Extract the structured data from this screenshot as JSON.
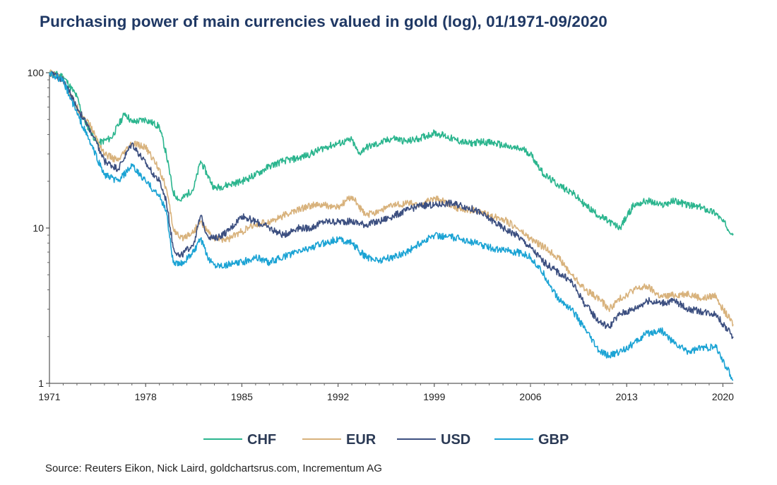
{
  "chart_data": {
    "type": "line",
    "title": "Purchasing power of main currencies valued in gold (log), 01/1971-09/2020",
    "yscale": "log",
    "ylim": [
      1,
      100
    ],
    "xlim": [
      1971.0,
      2020.75
    ],
    "x_ticks": [
      "1971",
      "1978",
      "1985",
      "1992",
      "1999",
      "2006",
      "2013",
      "2020"
    ],
    "y_ticks": [
      "1",
      "10",
      "100"
    ],
    "grid": false,
    "legend_position": "bottom",
    "series": [
      {
        "name": "CHF",
        "color": "#2bb58e",
        "x": [
          1971.0,
          1972.0,
          1973.0,
          1973.5,
          1974.5,
          1975.5,
          1976.5,
          1977.0,
          1978.0,
          1979.0,
          1979.5,
          1980.0,
          1980.5,
          1981.5,
          1982.0,
          1982.5,
          1983.0,
          1984.0,
          1985.0,
          1986.0,
          1987.0,
          1988.0,
          1989.0,
          1990.0,
          1991.0,
          1992.0,
          1993.0,
          1993.5,
          1994.0,
          1995.0,
          1996.0,
          1997.0,
          1998.0,
          1999.0,
          1999.5,
          2000.5,
          2001.5,
          2002.5,
          2003.5,
          2004.5,
          2005.5,
          2006.0,
          2007.0,
          2008.0,
          2009.0,
          2010.0,
          2011.0,
          2011.7,
          2012.5,
          2013.5,
          2014.5,
          2015.5,
          2016.5,
          2017.5,
          2018.5,
          2019.5,
          2020.0,
          2020.75
        ],
        "values": [
          100,
          95,
          70,
          50,
          35,
          38,
          55,
          48,
          50,
          45,
          30,
          17,
          15,
          18,
          27,
          22,
          18,
          19,
          20,
          22,
          25,
          27,
          28,
          30,
          33,
          35,
          37,
          30,
          33,
          35,
          38,
          36,
          38,
          41,
          40,
          37,
          35,
          36,
          35,
          33,
          32,
          30,
          22,
          19,
          17,
          14,
          12,
          11,
          10,
          14,
          15,
          14,
          15,
          14,
          13.5,
          12.5,
          11,
          9.2
        ]
      },
      {
        "name": "EUR",
        "color": "#d8b27c",
        "x": [
          1971.0,
          1972.0,
          1973.0,
          1974.0,
          1975.0,
          1976.0,
          1977.0,
          1978.0,
          1979.0,
          1979.5,
          1980.0,
          1980.5,
          1981.5,
          1982.0,
          1982.5,
          1983.0,
          1984.0,
          1985.0,
          1986.0,
          1987.0,
          1988.0,
          1989.0,
          1990.0,
          1991.0,
          1992.0,
          1993.0,
          1994.0,
          1995.0,
          1996.0,
          1997.0,
          1998.0,
          1999.0,
          2000.0,
          2001.0,
          2002.0,
          2003.0,
          2004.0,
          2005.0,
          2006.0,
          2007.0,
          2008.0,
          2009.0,
          2010.0,
          2011.0,
          2011.7,
          2012.5,
          2013.5,
          2014.5,
          2015.5,
          2016.5,
          2017.5,
          2018.5,
          2019.5,
          2020.0,
          2020.75
        ],
        "values": [
          100,
          90,
          60,
          45,
          30,
          27,
          35,
          33,
          24,
          18,
          10,
          8.5,
          9.5,
          11,
          9.5,
          8.5,
          8.5,
          9.5,
          10.5,
          11,
          12,
          13,
          14,
          14,
          13.5,
          16,
          12,
          13,
          14,
          14.5,
          14,
          15.5,
          14.5,
          13,
          13,
          12,
          11.5,
          10,
          8.5,
          7.5,
          6.5,
          5,
          4,
          3.5,
          3,
          3.5,
          4,
          4.2,
          3.6,
          3.7,
          3.8,
          3.5,
          3.7,
          3.0,
          2.4
        ]
      },
      {
        "name": "USD",
        "color": "#3c4f80",
        "x": [
          1971.0,
          1972.0,
          1973.0,
          1974.0,
          1975.0,
          1976.0,
          1977.0,
          1978.0,
          1979.0,
          1979.5,
          1980.0,
          1980.5,
          1981.5,
          1982.0,
          1982.5,
          1983.0,
          1984.0,
          1985.0,
          1986.0,
          1987.0,
          1988.0,
          1989.0,
          1990.0,
          1991.0,
          1992.0,
          1993.0,
          1994.0,
          1995.0,
          1996.0,
          1997.0,
          1998.0,
          1999.0,
          2000.0,
          2001.0,
          2002.0,
          2003.0,
          2004.0,
          2005.0,
          2006.0,
          2007.0,
          2008.0,
          2009.0,
          2010.0,
          2011.0,
          2011.7,
          2012.5,
          2013.5,
          2014.5,
          2015.5,
          2016.5,
          2017.5,
          2018.5,
          2019.5,
          2020.0,
          2020.75
        ],
        "values": [
          100,
          90,
          60,
          42,
          27,
          24,
          35,
          26,
          20,
          15,
          7.5,
          6.5,
          8,
          12,
          9,
          8.5,
          9.5,
          12,
          11,
          10,
          9,
          10,
          10,
          11,
          11,
          11,
          10.5,
          11,
          12,
          13,
          14,
          14,
          14.5,
          14,
          13,
          11.5,
          10,
          9,
          7.5,
          6,
          5.2,
          4.5,
          3.2,
          2.5,
          2.3,
          2.8,
          3.0,
          3.4,
          3.3,
          3.4,
          3.0,
          2.9,
          2.8,
          2.4,
          2.0
        ]
      },
      {
        "name": "GBP",
        "color": "#1ba3d4",
        "x": [
          1971.0,
          1972.0,
          1973.0,
          1974.0,
          1975.0,
          1976.0,
          1977.0,
          1978.0,
          1979.0,
          1979.5,
          1980.0,
          1980.5,
          1981.5,
          1982.0,
          1982.5,
          1983.0,
          1984.0,
          1985.0,
          1986.0,
          1987.0,
          1988.0,
          1989.0,
          1990.0,
          1991.0,
          1992.0,
          1993.0,
          1994.0,
          1995.0,
          1996.0,
          1997.0,
          1998.0,
          1999.0,
          2000.0,
          2001.0,
          2002.0,
          2003.0,
          2004.0,
          2005.0,
          2006.0,
          2007.0,
          2008.0,
          2009.0,
          2010.0,
          2011.0,
          2011.7,
          2012.5,
          2013.5,
          2014.5,
          2015.5,
          2016.5,
          2017.5,
          2018.5,
          2019.5,
          2020.0,
          2020.75
        ],
        "values": [
          100,
          88,
          55,
          35,
          22,
          20,
          25,
          20,
          16,
          13,
          6,
          5.8,
          7,
          8.5,
          6.5,
          5.8,
          5.8,
          6,
          6.5,
          6,
          6.5,
          7,
          7.5,
          8,
          8.5,
          8,
          6.5,
          6.2,
          6.5,
          7,
          8,
          9,
          8.8,
          8.5,
          8,
          7.5,
          7.2,
          7,
          6.5,
          5,
          3.5,
          3.0,
          2.2,
          1.6,
          1.5,
          1.6,
          1.8,
          2.1,
          2.2,
          1.8,
          1.6,
          1.7,
          1.7,
          1.4,
          1.05
        ]
      }
    ]
  },
  "source": "Source: Reuters Eikon, Nick Laird, goldchartsrus.com, Incrementum AG"
}
